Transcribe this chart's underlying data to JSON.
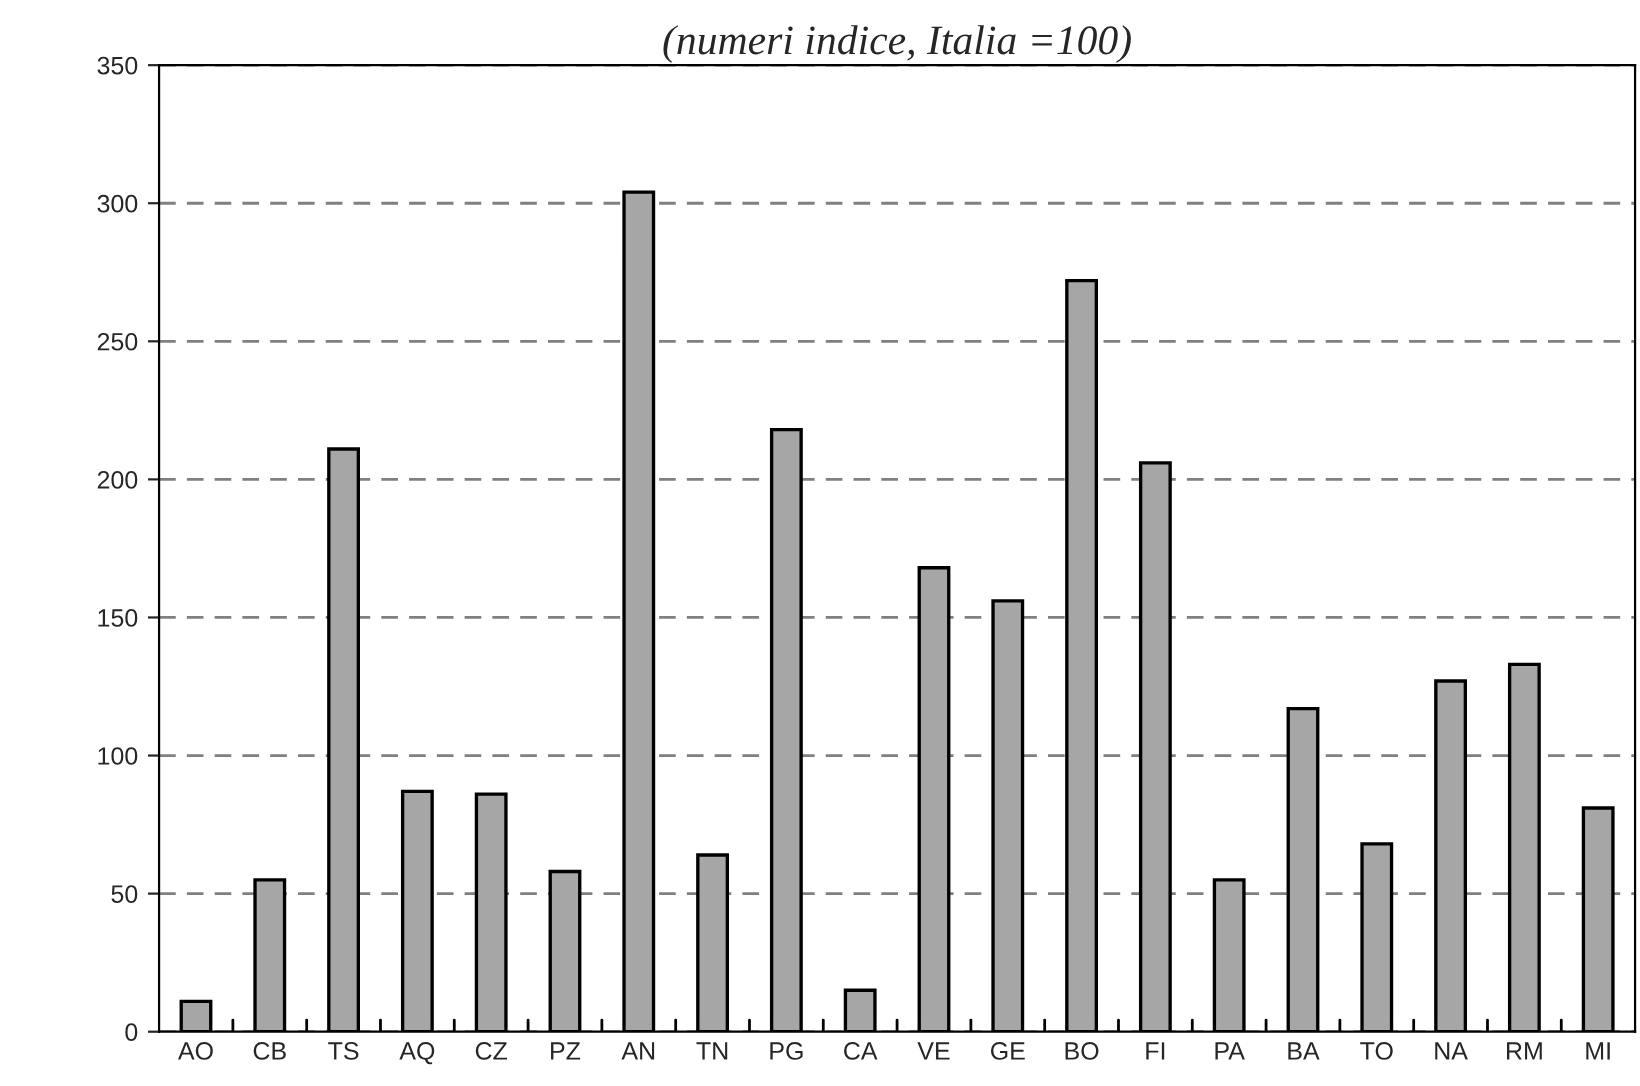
{
  "chart_data": {
    "type": "bar",
    "title": "(numeri indice, Italia =100)",
    "categories": [
      "AO",
      "CB",
      "TS",
      "AQ",
      "CZ",
      "PZ",
      "AN",
      "TN",
      "PG",
      "CA",
      "VE",
      "GE",
      "BO",
      "FI",
      "PA",
      "BA",
      "TO",
      "NA",
      "RM",
      "MI"
    ],
    "values": [
      11,
      55,
      211,
      87,
      86,
      58,
      304,
      64,
      218,
      15,
      168,
      156,
      272,
      206,
      55,
      117,
      68,
      127,
      133,
      81
    ],
    "color": "#a6a6a6",
    "ylim": [
      0,
      350
    ],
    "yticks": [
      0,
      50,
      100,
      150,
      200,
      250,
      300,
      350
    ],
    "grid": "y"
  }
}
